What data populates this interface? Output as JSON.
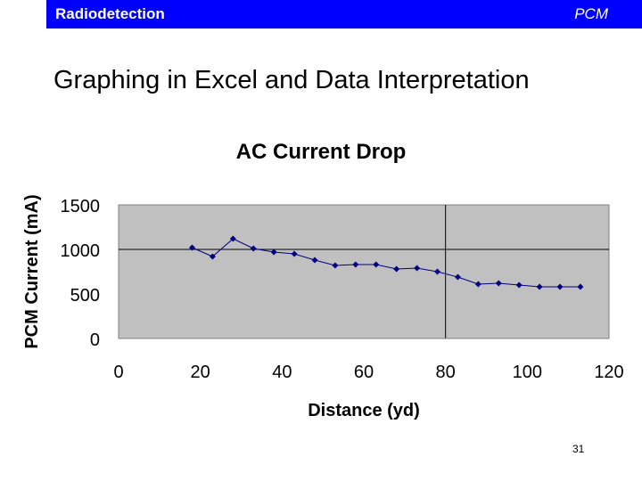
{
  "header": {
    "left_label": "Radiodetection",
    "right_label": "PCM"
  },
  "slide": {
    "title": "Graphing in Excel and Data Interpretation",
    "page_number": "31"
  },
  "colors": {
    "header_bar": "#0000ff",
    "plot_area": "#c0c0c0",
    "series": "#000080"
  },
  "chart_data": {
    "type": "line",
    "title": "AC Current Drop",
    "xlabel": "Distance (yd)",
    "ylabel": "PCM Current (mA)",
    "xlim": [
      0,
      120
    ],
    "ylim": [
      0,
      1500
    ],
    "x_ticks": [
      0,
      20,
      40,
      60,
      80,
      100,
      120
    ],
    "y_ticks": [
      0,
      500,
      1000,
      1500
    ],
    "gridlines": {
      "horizontal": [
        1000
      ],
      "vertical": [
        80
      ]
    },
    "series": [
      {
        "name": "PCM Current",
        "marker": "diamond",
        "x": [
          18,
          23,
          28,
          33,
          38,
          43,
          48,
          53,
          58,
          63,
          68,
          73,
          78,
          83,
          88,
          93,
          98,
          103,
          108,
          113
        ],
        "values": [
          1020,
          920,
          1120,
          1010,
          970,
          950,
          880,
          820,
          830,
          830,
          780,
          790,
          750,
          690,
          610,
          620,
          600,
          580,
          580,
          580
        ]
      }
    ]
  }
}
